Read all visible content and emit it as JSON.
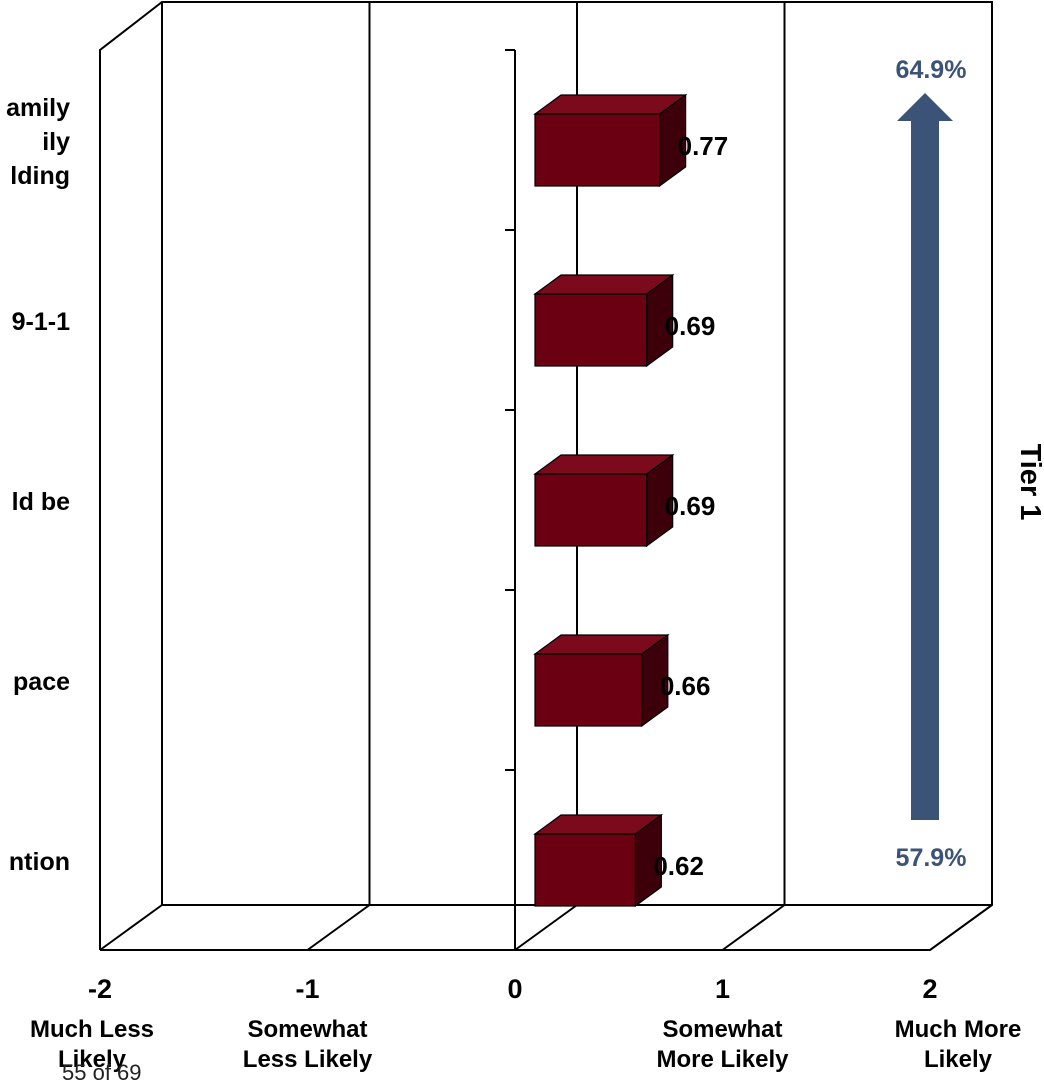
{
  "chart_data": {
    "type": "bar",
    "orientation": "horizontal",
    "categories_visible": [
      "amily\nily\nlding",
      "9-1-1",
      "ld be",
      "pace",
      "ntion"
    ],
    "values": [
      0.77,
      0.69,
      0.69,
      0.66,
      0.62
    ],
    "value_labels": [
      "0.77",
      "0.69",
      "0.69",
      "0.66",
      "0.62"
    ],
    "xlim": [
      -2,
      2
    ],
    "x_ticks": [
      "-2",
      "-1",
      "0",
      "1",
      "2"
    ],
    "x_tick_descriptions": [
      "Much Less\nLikely",
      "Somewhat\nLess Likely",
      "",
      "Somewhat\nMore Likely",
      "Much More\nLikely"
    ],
    "bar_color": "#6b0012",
    "arrow": {
      "top_label": "64.9%",
      "bottom_label": "57.9%",
      "color": "#3b5377"
    },
    "side_label": "Tier 1"
  },
  "page_number": "55 of 69"
}
